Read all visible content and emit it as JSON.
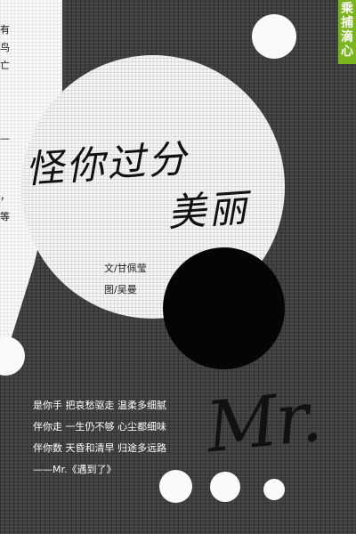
{
  "badge": {
    "chars": [
      "乘",
      "捕",
      "滴",
      "心"
    ],
    "color": "#7ab51d"
  },
  "paper_fragments": [
    "有",
    "鸟",
    "亡",
    "—",
    "，",
    "等"
  ],
  "title": {
    "line1": "怪你过分",
    "line2": "美丽"
  },
  "credits": {
    "author": "文/甘佩莹",
    "illustrator": "图/吴曼"
  },
  "poem": [
    "是你手 把哀愁驱走 温柔多细腻",
    "伴你走 一生仍不够 心尘都细味",
    "伴你数 天昏和清早 归途多远路",
    "——Mr.《遇到了》"
  ],
  "mr_text": "Mr."
}
